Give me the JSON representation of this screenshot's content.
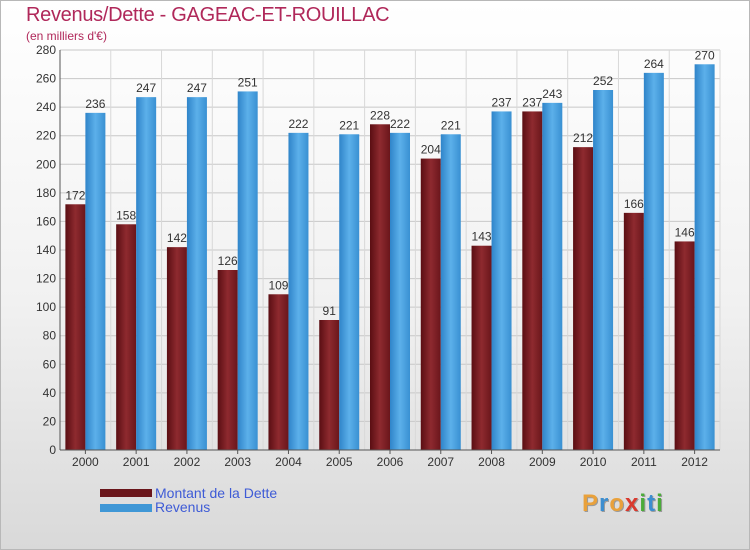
{
  "title": "Revenus/Dette - GAGEAC-ET-ROUILLAC",
  "subtitle": "(en milliers d'€)",
  "colors": {
    "title": "#b0285a",
    "debt": "#7a1d22",
    "revenue": "#3f97d6",
    "legend_text": "#3e5bd6"
  },
  "legend": [
    {
      "label": "Montant de la Dette",
      "color": "#7a1d22"
    },
    {
      "label": "Revenus",
      "color": "#3f97d6"
    }
  ],
  "logo": {
    "text": "Proxiti",
    "letters": [
      {
        "ch": "P",
        "color": "#e9a13b"
      },
      {
        "ch": "r",
        "color": "#3c8ed0"
      },
      {
        "ch": "o",
        "color": "#e9a13b"
      },
      {
        "ch": "x",
        "color": "#d93a2f"
      },
      {
        "ch": "i",
        "color": "#4bab3a"
      },
      {
        "ch": "t",
        "color": "#3c8ed0"
      },
      {
        "ch": "i",
        "color": "#4bab3a"
      }
    ]
  },
  "chart_data": {
    "type": "bar",
    "title": "Revenus/Dette - GAGEAC-ET-ROUILLAC",
    "subtitle": "(en milliers d'€)",
    "categories": [
      "2000",
      "2001",
      "2002",
      "2003",
      "2004",
      "2005",
      "2006",
      "2007",
      "2008",
      "2009",
      "2010",
      "2011",
      "2012"
    ],
    "series": [
      {
        "name": "Montant de la Dette",
        "values": [
          172,
          158,
          142,
          126,
          109,
          91,
          228,
          204,
          143,
          237,
          212,
          166,
          146
        ]
      },
      {
        "name": "Revenus",
        "values": [
          236,
          247,
          247,
          251,
          222,
          221,
          222,
          221,
          237,
          243,
          252,
          264,
          270
        ]
      }
    ],
    "ylim": [
      0,
      280
    ],
    "yticks": [
      0,
      20,
      40,
      60,
      80,
      100,
      120,
      140,
      160,
      180,
      200,
      220,
      240,
      260,
      280
    ],
    "grid": true,
    "legend_position": "bottom-left"
  }
}
